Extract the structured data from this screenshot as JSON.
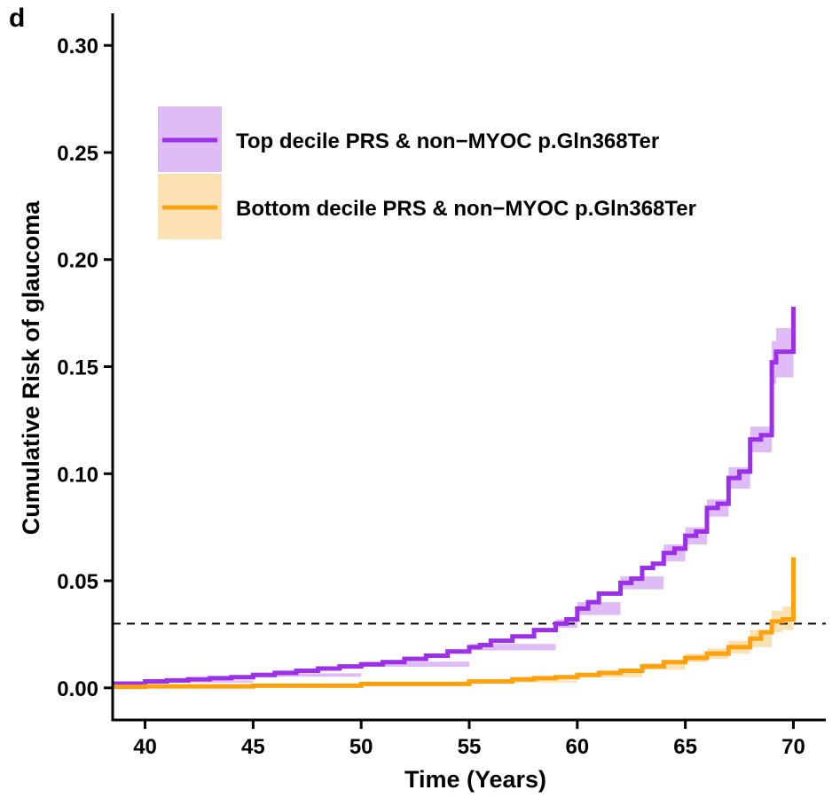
{
  "panel_label": "d",
  "chart_data": {
    "type": "line",
    "xlabel": "Time (Years)",
    "ylabel": "Cumulative Risk of glaucoma",
    "xlim": [
      38.5,
      71.5
    ],
    "ylim": [
      -0.015,
      0.315
    ],
    "x_ticks": [
      40,
      45,
      50,
      55,
      60,
      65,
      70
    ],
    "y_ticks": [
      0.0,
      0.05,
      0.1,
      0.15,
      0.2,
      0.25,
      0.3
    ],
    "x_tick_labels": [
      "40",
      "45",
      "50",
      "55",
      "60",
      "65",
      "70"
    ],
    "y_tick_labels": [
      "0.00",
      "0.05",
      "0.10",
      "0.15",
      "0.20",
      "0.25",
      "0.30"
    ],
    "grid": false,
    "legend_position": "top-left",
    "reference_line": {
      "y": 0.03,
      "style": "dashed"
    },
    "series": [
      {
        "name": "Top decile PRS & non−MYOC p.Gln368Ter",
        "color": "#9B30E8",
        "band_color": "#D9B0F5",
        "step": true,
        "points": [
          [
            38.5,
            0.002
          ],
          [
            40,
            0.003
          ],
          [
            41,
            0.0035
          ],
          [
            42,
            0.004
          ],
          [
            43,
            0.0045
          ],
          [
            44,
            0.005
          ],
          [
            45,
            0.006
          ],
          [
            46,
            0.007
          ],
          [
            47,
            0.008
          ],
          [
            48,
            0.009
          ],
          [
            49,
            0.01
          ],
          [
            50,
            0.011
          ],
          [
            51,
            0.012
          ],
          [
            52,
            0.0135
          ],
          [
            53,
            0.015
          ],
          [
            54,
            0.017
          ],
          [
            55,
            0.019
          ],
          [
            55.5,
            0.02
          ],
          [
            56,
            0.022
          ],
          [
            57,
            0.024
          ],
          [
            58,
            0.027
          ],
          [
            59,
            0.03
          ],
          [
            59.5,
            0.032
          ],
          [
            60,
            0.037
          ],
          [
            60.5,
            0.04
          ],
          [
            61,
            0.044
          ],
          [
            62,
            0.049
          ],
          [
            62.5,
            0.051
          ],
          [
            63,
            0.056
          ],
          [
            63.5,
            0.058
          ],
          [
            64,
            0.063
          ],
          [
            64.5,
            0.065
          ],
          [
            65,
            0.071
          ],
          [
            65.5,
            0.073
          ],
          [
            66,
            0.084
          ],
          [
            66.5,
            0.086
          ],
          [
            67,
            0.098
          ],
          [
            67.5,
            0.101
          ],
          [
            68,
            0.116
          ],
          [
            68.5,
            0.118
          ],
          [
            69,
            0.152
          ],
          [
            69.2,
            0.157
          ],
          [
            70,
            0.178
          ]
        ],
        "lower": [
          [
            38.5,
            0.0015
          ],
          [
            40,
            0.0025
          ],
          [
            45,
            0.0052
          ],
          [
            50,
            0.0098
          ],
          [
            55,
            0.0175
          ],
          [
            59,
            0.028
          ],
          [
            60,
            0.034
          ],
          [
            62,
            0.046
          ],
          [
            64,
            0.059
          ],
          [
            65,
            0.067
          ],
          [
            66,
            0.08
          ],
          [
            67,
            0.093
          ],
          [
            68,
            0.11
          ],
          [
            69,
            0.142
          ],
          [
            69.2,
            0.145
          ],
          [
            70,
            0.16
          ]
        ],
        "upper": [
          [
            38.5,
            0.0025
          ],
          [
            40,
            0.0035
          ],
          [
            45,
            0.0068
          ],
          [
            50,
            0.0122
          ],
          [
            55,
            0.0205
          ],
          [
            59,
            0.032
          ],
          [
            60,
            0.04
          ],
          [
            62,
            0.052
          ],
          [
            64,
            0.067
          ],
          [
            65,
            0.075
          ],
          [
            66,
            0.088
          ],
          [
            67,
            0.103
          ],
          [
            68,
            0.122
          ],
          [
            69,
            0.162
          ],
          [
            69.2,
            0.168
          ],
          [
            70,
            0.202
          ]
        ]
      },
      {
        "name": "Bottom decile PRS & non−MYOC p.Gln368Ter",
        "color": "#FFA10A",
        "band_color": "#FBDCA8",
        "step": true,
        "points": [
          [
            38.5,
            0.0005
          ],
          [
            40,
            0.0007
          ],
          [
            45,
            0.001
          ],
          [
            50,
            0.0018
          ],
          [
            55,
            0.003
          ],
          [
            57,
            0.004
          ],
          [
            58,
            0.0045
          ],
          [
            59,
            0.005
          ],
          [
            60,
            0.006
          ],
          [
            61,
            0.007
          ],
          [
            62,
            0.008
          ],
          [
            63,
            0.01
          ],
          [
            64,
            0.012
          ],
          [
            65,
            0.014
          ],
          [
            66,
            0.016
          ],
          [
            67,
            0.019
          ],
          [
            68,
            0.023
          ],
          [
            68.5,
            0.026
          ],
          [
            69,
            0.031
          ],
          [
            69.5,
            0.032
          ],
          [
            70,
            0.061
          ]
        ],
        "lower": [
          [
            38.5,
            0.0003
          ],
          [
            45,
            0.0008
          ],
          [
            50,
            0.0015
          ],
          [
            55,
            0.0025
          ],
          [
            60,
            0.005
          ],
          [
            63,
            0.0085
          ],
          [
            65,
            0.012
          ],
          [
            66,
            0.0135
          ],
          [
            67,
            0.016
          ],
          [
            68,
            0.019
          ],
          [
            69,
            0.026
          ],
          [
            69.5,
            0.027
          ],
          [
            70,
            0.045
          ]
        ],
        "upper": [
          [
            38.5,
            0.0007
          ],
          [
            45,
            0.0012
          ],
          [
            50,
            0.0021
          ],
          [
            55,
            0.0035
          ],
          [
            60,
            0.007
          ],
          [
            63,
            0.0115
          ],
          [
            65,
            0.016
          ],
          [
            66,
            0.0185
          ],
          [
            67,
            0.022
          ],
          [
            68,
            0.027
          ],
          [
            69,
            0.036
          ],
          [
            69.5,
            0.038
          ],
          [
            70,
            0.084
          ]
        ]
      }
    ]
  }
}
